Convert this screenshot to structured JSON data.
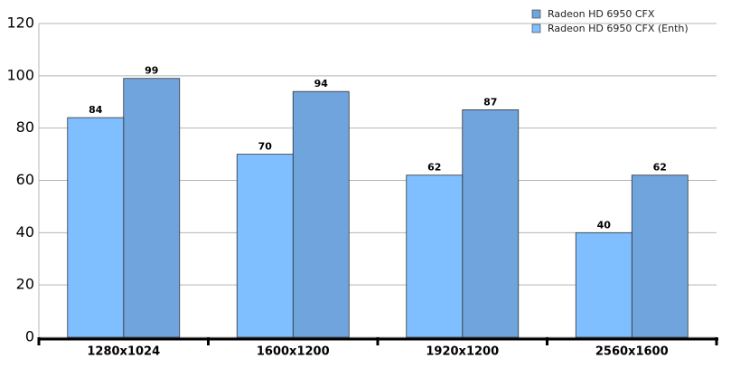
{
  "chart_data": {
    "type": "bar",
    "categories": [
      "1280x1024",
      "1600x1200",
      "1920x1200",
      "2560x1600"
    ],
    "series": [
      {
        "name": "Radeon HD 6950 CFX",
        "color": "#6fa4dc",
        "values": [
          99,
          94,
          87,
          62
        ]
      },
      {
        "name": "Radeon HD 6950 CFX (Enth)",
        "color": "#80bfff",
        "values": [
          84,
          70,
          62,
          40
        ]
      }
    ],
    "ylim": [
      0,
      120
    ],
    "yticks": [
      0,
      20,
      40,
      60,
      80,
      100,
      120
    ],
    "grid": true,
    "legend": "top-right"
  }
}
